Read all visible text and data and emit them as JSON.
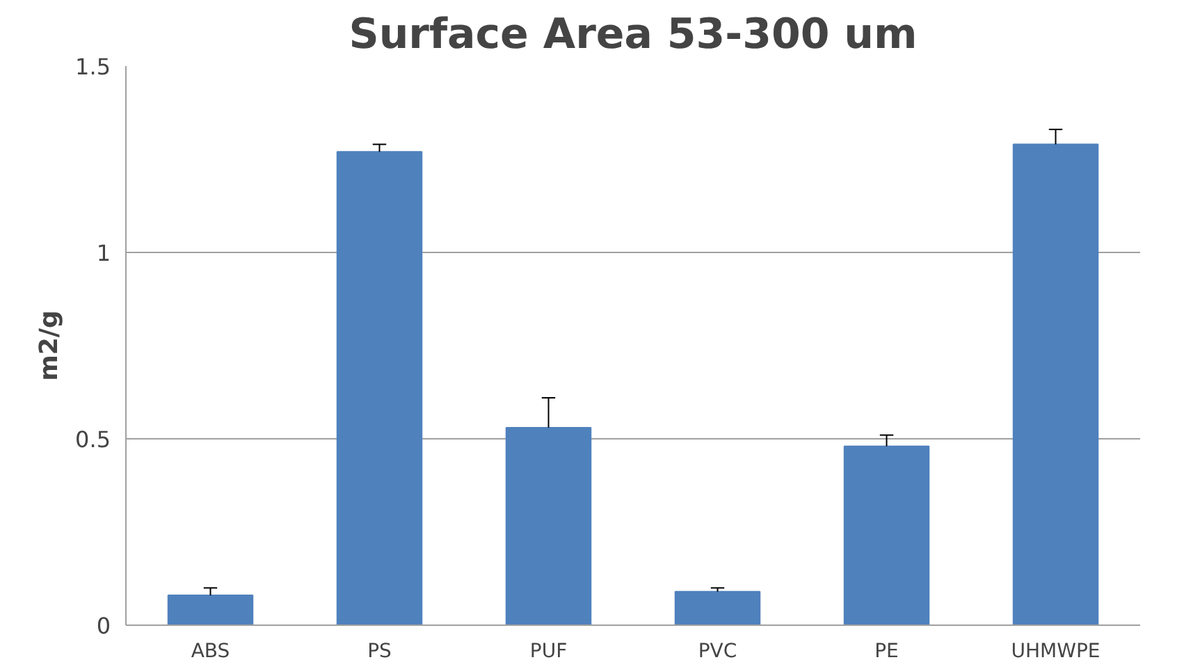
{
  "chart_data": {
    "type": "bar",
    "title": "Surface Area 53-300 um",
    "ylabel": "m2/g",
    "categories": [
      "ABS",
      "PS",
      "PUF",
      "PVC",
      "PE",
      "UHMWPE"
    ],
    "values": [
      0.08,
      1.27,
      0.53,
      0.09,
      0.48,
      1.29
    ],
    "errors": [
      [
        0.08,
        0.1
      ],
      [
        1.27,
        1.29
      ],
      [
        0.53,
        0.61
      ],
      [
        0.09,
        0.1
      ],
      [
        0.48,
        0.51
      ],
      [
        1.29,
        1.33
      ]
    ],
    "color": "#4f81bd",
    "ylim": [
      0,
      1.5
    ],
    "yticks": [
      0,
      0.5,
      1,
      1.5
    ],
    "grid": "y"
  }
}
